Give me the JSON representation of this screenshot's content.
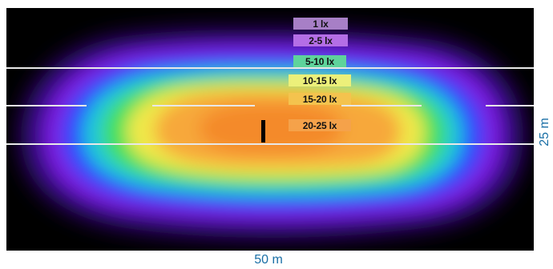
{
  "diagram": {
    "title": "",
    "legend": [
      {
        "label": "1 lx",
        "color": "#a77fc6"
      },
      {
        "label": "2-5 lx",
        "color": "#b46ee6"
      },
      {
        "label": "5-10 lx",
        "color": "#5ed39b"
      },
      {
        "label": "10-15 lx",
        "color": "#ecf07a"
      },
      {
        "label": "15-20 lx",
        "color": "#f4c34e"
      },
      {
        "label": "20-25 lx",
        "color": "#f5a24a"
      }
    ],
    "width_label": "50 m",
    "height_label": "25 m",
    "colors": {
      "background": "#000000",
      "outer": "#3b0a8a",
      "violet": "#7a1ce0",
      "blue": "#2b4bff",
      "cyan": "#1cc8d8",
      "green": "#43e05a",
      "yellow": "#f0e84a",
      "orange": "#f7a83a",
      "center": "#f48a2a"
    }
  }
}
